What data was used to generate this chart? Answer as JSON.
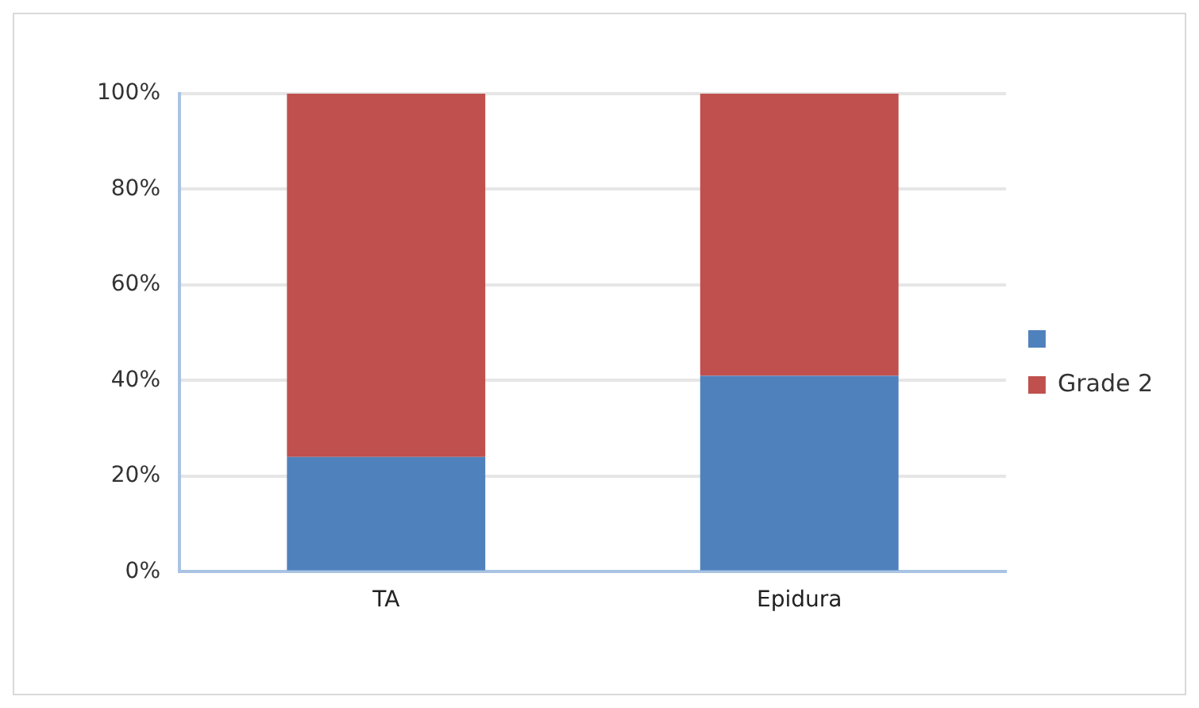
{
  "chart_data": {
    "type": "bar",
    "stacked": true,
    "categories": [
      "TA",
      "Epidura"
    ],
    "series": [
      {
        "color": "#4f81bd",
        "values": [
          24,
          41
        ]
      },
      {
        "name": "Grade 2",
        "color": "#c0504d",
        "values": [
          76,
          59
        ]
      }
    ],
    "ylim": [
      0,
      100
    ],
    "yticks": [
      {
        "value": 0,
        "label": "0%"
      },
      {
        "value": 20,
        "label": "20%"
      },
      {
        "value": 40,
        "label": "40%"
      },
      {
        "value": 60,
        "label": "60%"
      },
      {
        "value": 80,
        "label": "80%"
      },
      {
        "value": 100,
        "label": "100%"
      }
    ],
    "grid": "y",
    "legend": "right"
  }
}
